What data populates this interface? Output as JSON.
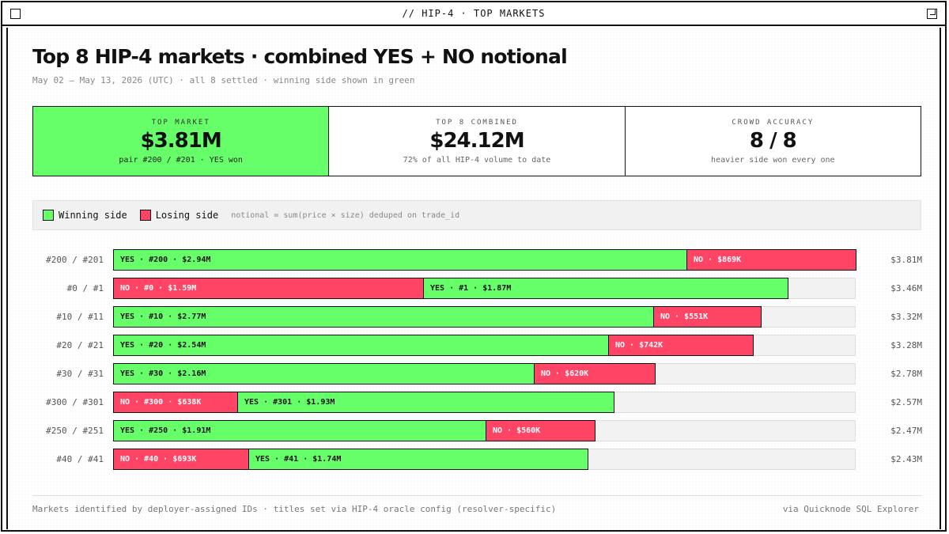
{
  "window": {
    "title": "// HIP-4 · TOP MARKETS"
  },
  "header": {
    "title": "Top 8 HIP-4 markets · combined YES + NO notional",
    "subtitle": "May 02 – May 13, 2026 (UTC) · all 8 settled · winning side shown in green"
  },
  "cards": [
    {
      "label": "TOP MARKET",
      "value": "$3.81M",
      "note": "pair #200 / #201 · YES won"
    },
    {
      "label": "TOP 8 COMBINED",
      "value": "$24.12M",
      "note": "72% of all HIP-4 volume to date"
    },
    {
      "label": "CROWD ACCURACY",
      "value": "8 / 8",
      "note": "heavier side won every one"
    }
  ],
  "legend": {
    "winning": "Winning side",
    "losing": "Losing side",
    "note": "notional = sum(price × size) deduped on trade_id"
  },
  "colors": {
    "win": "#66ff6a",
    "lose": "#ff4466",
    "track": "#f2f2f2"
  },
  "chart_data": {
    "type": "bar",
    "orientation": "horizontal-stacked",
    "units": "USD millions",
    "xlim": [
      0,
      3.81
    ],
    "rows": [
      {
        "label": "#200 / #201",
        "total": "$3.81M",
        "segments": [
          {
            "text": "YES · #200 · $2.94M",
            "value": 2.94,
            "won": true
          },
          {
            "text": "NO · $869K",
            "value": 0.869,
            "won": false
          }
        ]
      },
      {
        "label": "#0 / #1",
        "total": "$3.46M",
        "segments": [
          {
            "text": "NO · #0 · $1.59M",
            "value": 1.59,
            "won": false
          },
          {
            "text": "YES · #1 · $1.87M",
            "value": 1.87,
            "won": true
          }
        ]
      },
      {
        "label": "#10 / #11",
        "total": "$3.32M",
        "segments": [
          {
            "text": "YES · #10 · $2.77M",
            "value": 2.77,
            "won": true
          },
          {
            "text": "NO · $551K",
            "value": 0.551,
            "won": false
          }
        ]
      },
      {
        "label": "#20 / #21",
        "total": "$3.28M",
        "segments": [
          {
            "text": "YES · #20 · $2.54M",
            "value": 2.54,
            "won": true
          },
          {
            "text": "NO · $742K",
            "value": 0.742,
            "won": false
          }
        ]
      },
      {
        "label": "#30 / #31",
        "total": "$2.78M",
        "segments": [
          {
            "text": "YES · #30 · $2.16M",
            "value": 2.16,
            "won": true
          },
          {
            "text": "NO · $620K",
            "value": 0.62,
            "won": false
          }
        ]
      },
      {
        "label": "#300 / #301",
        "total": "$2.57M",
        "segments": [
          {
            "text": "NO · #300 · $638K",
            "value": 0.638,
            "won": false
          },
          {
            "text": "YES · #301 · $1.93M",
            "value": 1.93,
            "won": true
          }
        ]
      },
      {
        "label": "#250 / #251",
        "total": "$2.47M",
        "segments": [
          {
            "text": "YES · #250 · $1.91M",
            "value": 1.91,
            "won": true
          },
          {
            "text": "NO · $560K",
            "value": 0.56,
            "won": false
          }
        ]
      },
      {
        "label": "#40 / #41",
        "total": "$2.43M",
        "segments": [
          {
            "text": "NO · #40 · $693K",
            "value": 0.693,
            "won": false
          },
          {
            "text": "YES · #41 · $1.74M",
            "value": 1.74,
            "won": true
          }
        ]
      }
    ]
  },
  "footer": {
    "left": "Markets identified by deployer-assigned IDs · titles set via HIP-4 oracle config (resolver-specific)",
    "right": "via Quicknode SQL Explorer"
  }
}
